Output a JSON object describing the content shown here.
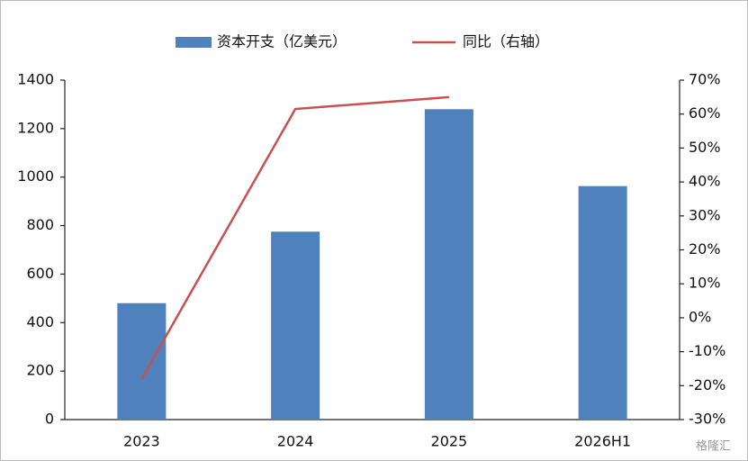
{
  "chart_data": {
    "type": "bar_line",
    "categories": [
      "2023",
      "2024",
      "2025",
      "2026H1"
    ],
    "series": [
      {
        "name": "资本开支（亿美元）",
        "type": "bar",
        "color": "#4f81bd",
        "values": [
          480,
          775,
          1280,
          963
        ]
      },
      {
        "name": "同比（右轴）",
        "type": "line",
        "axis": "y2",
        "color": "#c8504f",
        "values": [
          -18,
          61.5,
          65,
          null
        ]
      }
    ],
    "ylim": [
      0,
      1400
    ],
    "yticks": [
      0,
      200,
      400,
      600,
      800,
      1000,
      1200,
      1400
    ],
    "y2lim": [
      -30,
      70
    ],
    "y2ticks": [
      {
        "value": -30,
        "label": "-30%"
      },
      {
        "value": -20,
        "label": "-20%"
      },
      {
        "value": -10,
        "label": "-10%"
      },
      {
        "value": 0,
        "label": "0%"
      },
      {
        "value": 10,
        "label": "10%"
      },
      {
        "value": 20,
        "label": "20%"
      },
      {
        "value": 30,
        "label": "30%"
      },
      {
        "value": 40,
        "label": "40%"
      },
      {
        "value": 50,
        "label": "50%"
      },
      {
        "value": 60,
        "label": "60%"
      },
      {
        "value": 70,
        "label": "70%"
      }
    ],
    "legend": "top"
  },
  "watermark": "格隆汇"
}
